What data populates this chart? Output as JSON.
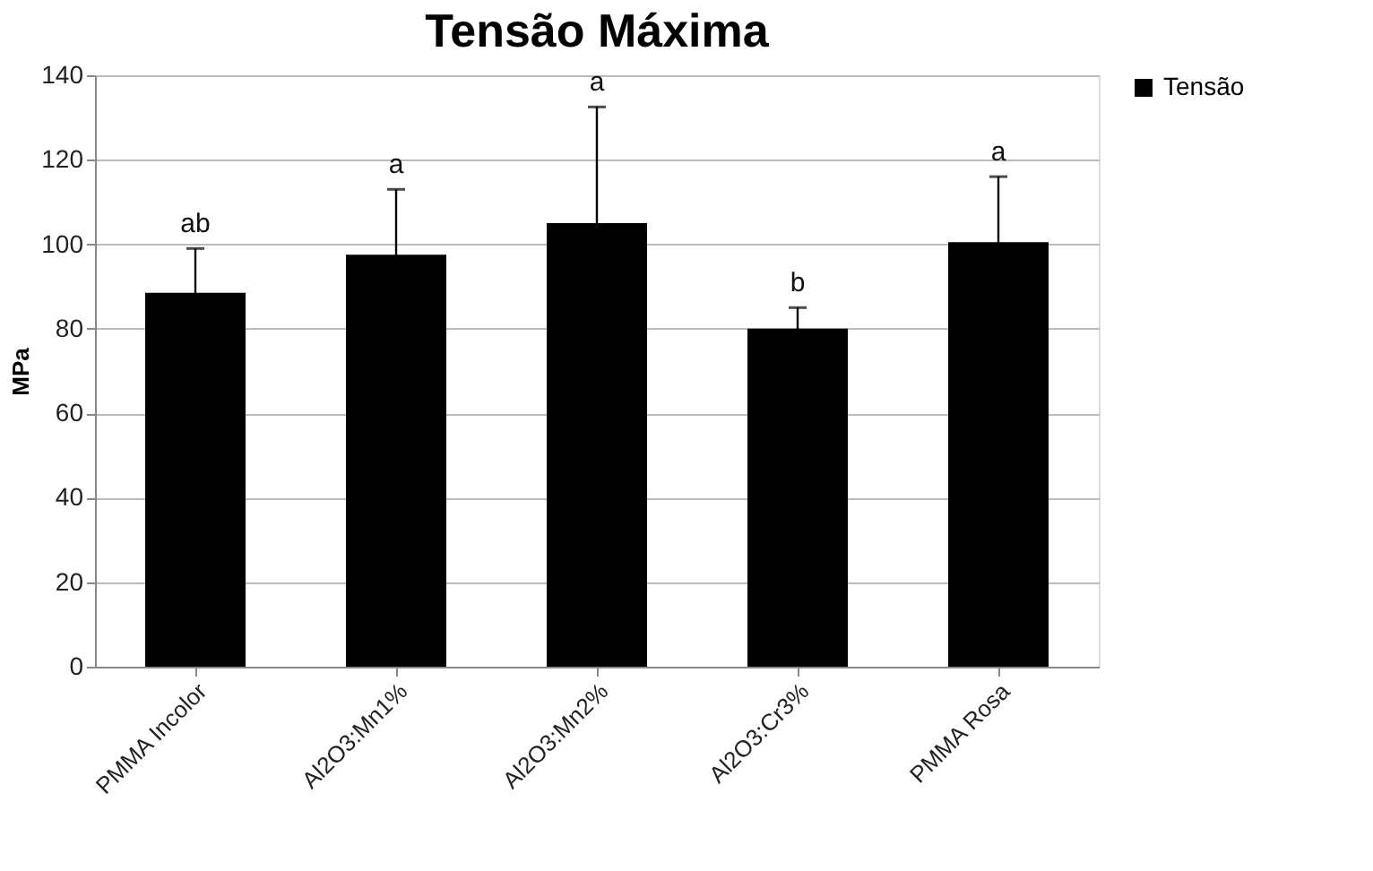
{
  "chart_data": {
    "type": "bar",
    "title": "Tensão Máxima",
    "ylabel": "MPa",
    "categories": [
      "PMMA Incolor",
      "Al2O3:Mn1%",
      "Al2O3:Mn2%",
      "Al2O3:Cr3%",
      "PMMA Rosa"
    ],
    "series": [
      {
        "name": "Tensão",
        "color": "#000000",
        "values": [
          88.5,
          97.5,
          105,
          80,
          100.5
        ],
        "errors": [
          10.5,
          15.5,
          27.5,
          5,
          15.5
        ]
      }
    ],
    "ylim": [
      0,
      140
    ],
    "yticks": [
      0,
      20,
      40,
      60,
      80,
      100,
      120,
      140
    ],
    "grid": "y",
    "legend": "right",
    "annotations": [
      "ab",
      "a",
      "a",
      "b",
      "a"
    ]
  }
}
